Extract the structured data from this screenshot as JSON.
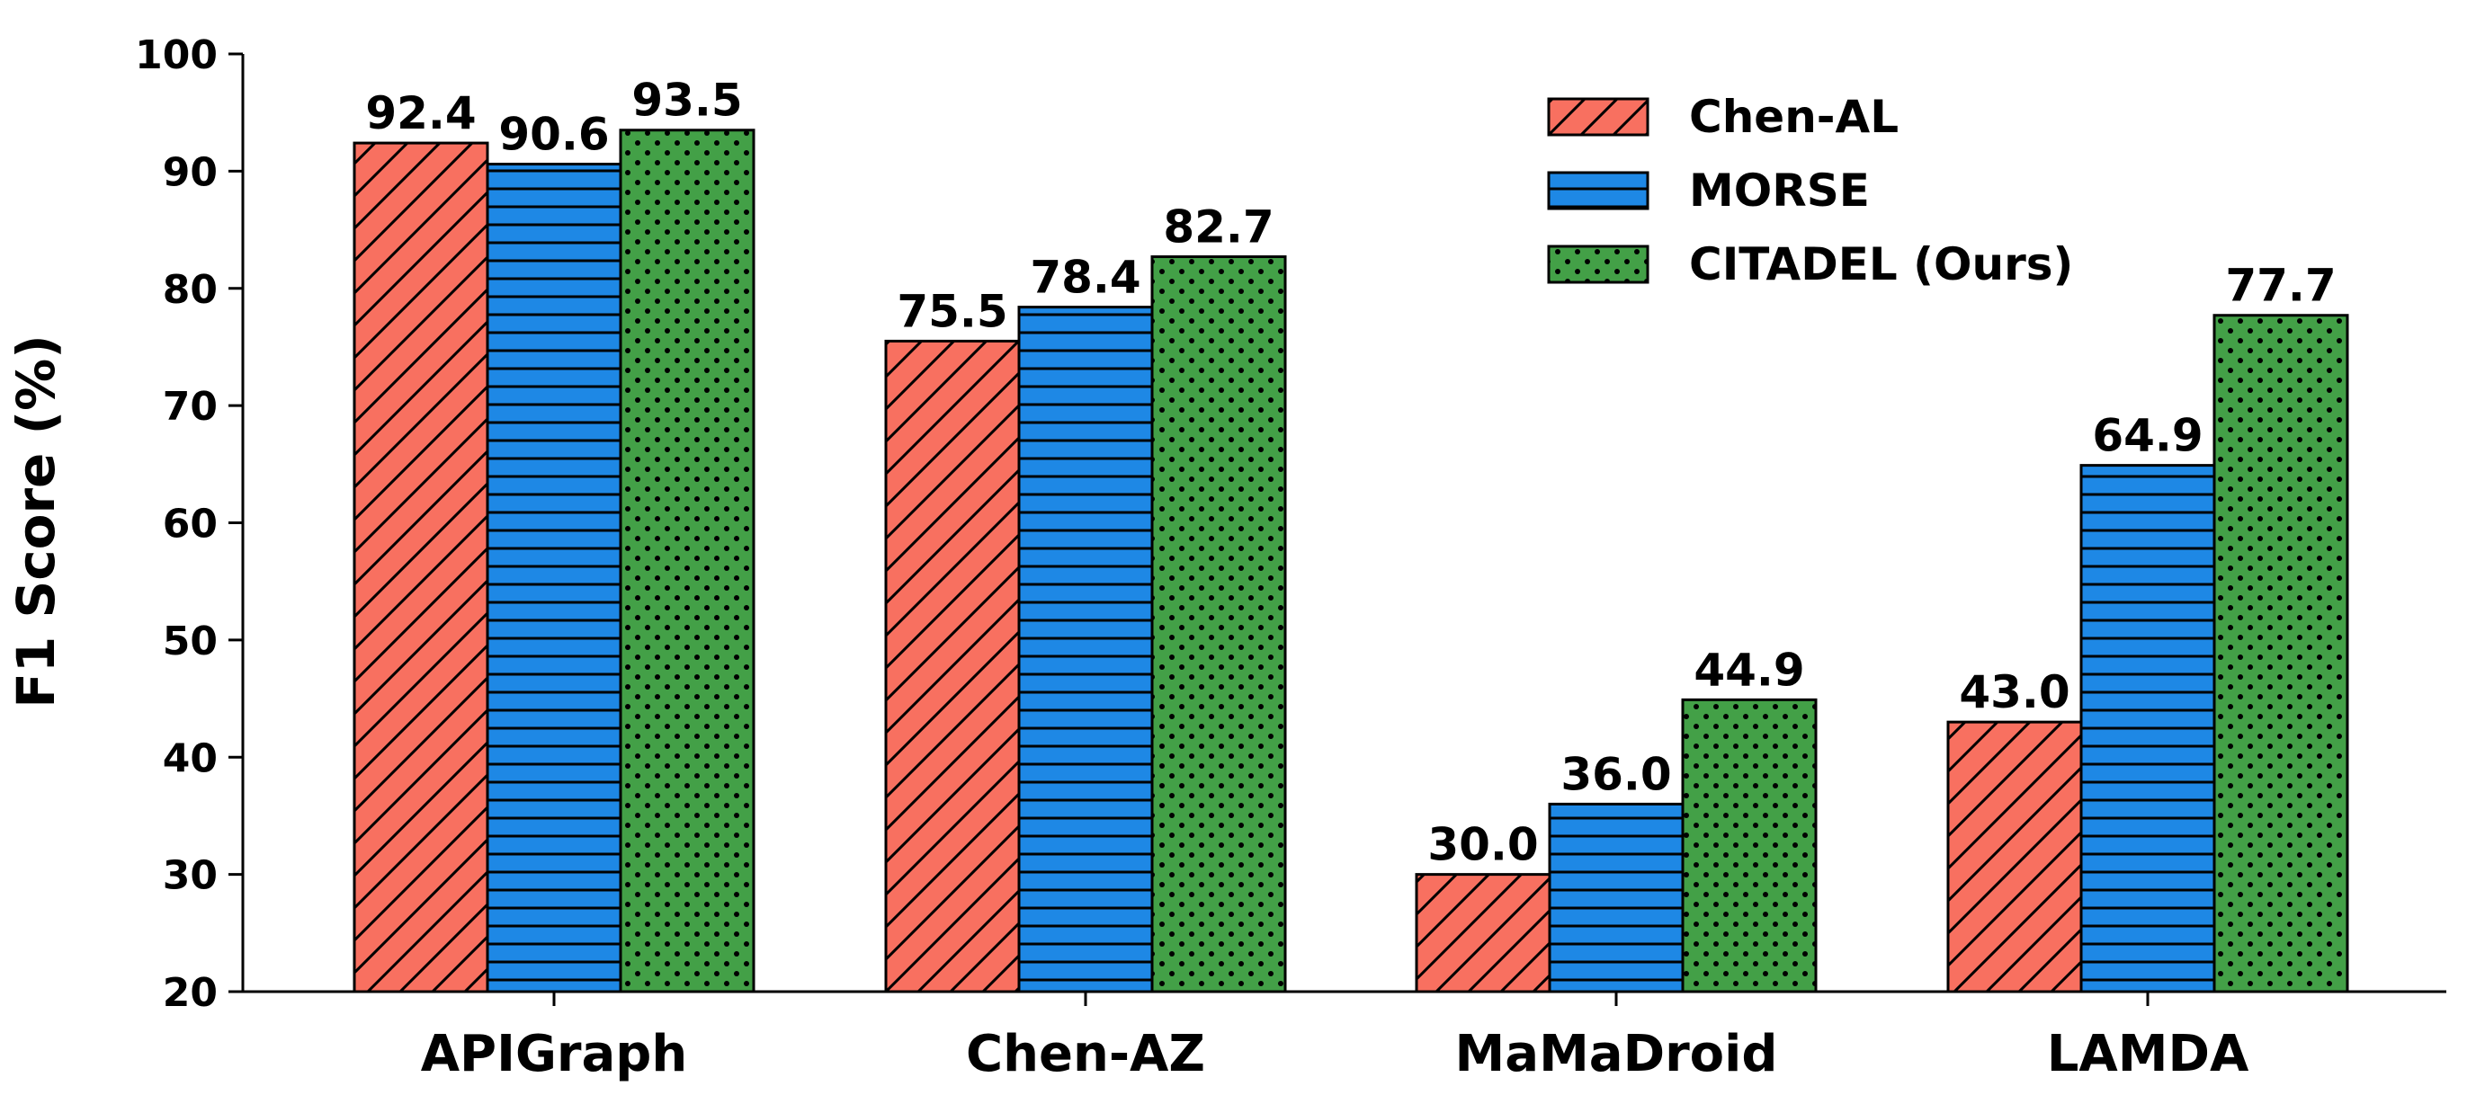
{
  "chart_data": {
    "type": "bar",
    "categories": [
      "APIGraph",
      "Chen-AZ",
      "MaMaDroid",
      "LAMDA"
    ],
    "series": [
      {
        "name": "Chen-AL",
        "values": [
          92.4,
          75.5,
          30.0,
          43.0
        ],
        "color": "#f87060",
        "pattern": "diagonal-hatch"
      },
      {
        "name": "MORSE",
        "values": [
          90.6,
          78.4,
          36.0,
          64.9
        ],
        "color": "#1e88e5",
        "pattern": "horizontal-hatch"
      },
      {
        "name": "CITADEL (Ours)",
        "values": [
          93.5,
          82.7,
          44.9,
          77.7
        ],
        "color": "#43a047",
        "pattern": "dots"
      }
    ],
    "ylabel": "F1 Score (%)",
    "xlabel": "",
    "ylim": [
      20,
      100
    ],
    "yticks": [
      20,
      30,
      40,
      50,
      60,
      70,
      80,
      90,
      100
    ],
    "legend": "top-right",
    "grid": false,
    "value_labels": true
  }
}
